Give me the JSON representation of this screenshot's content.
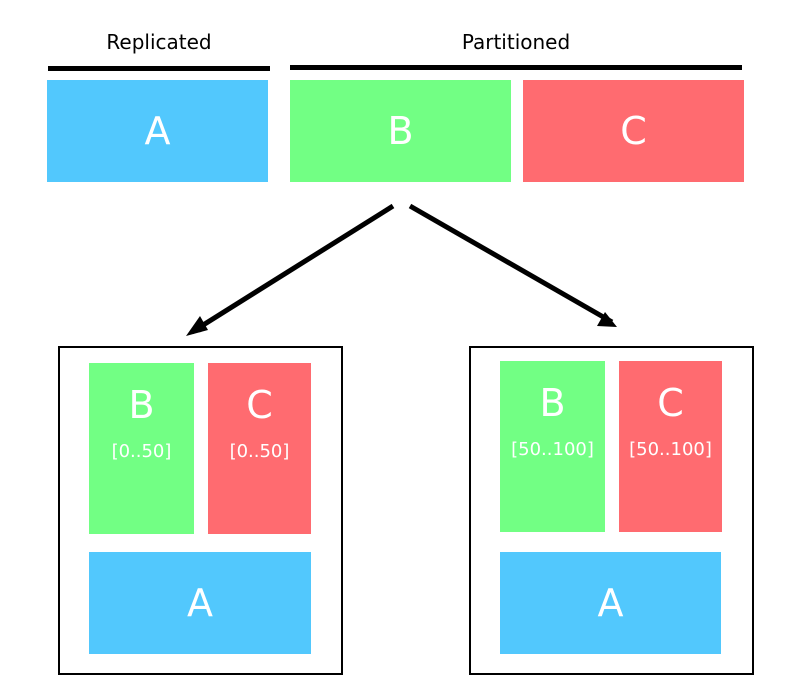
{
  "colors": {
    "replicated": "#52C8FD",
    "partitioned_b": "#72FF84",
    "partitioned_c": "#FF6B70",
    "text_on_block": "#FFFFFF",
    "line": "#000000"
  },
  "header": {
    "replicated_label": "Replicated",
    "partitioned_label": "Partitioned"
  },
  "tables": {
    "a": "A",
    "b": "B",
    "c": "C"
  },
  "nodes": [
    {
      "b_label": "B",
      "b_range": "[0..50]",
      "c_label": "C",
      "c_range": "[0..50]",
      "a_label": "A"
    },
    {
      "b_label": "B",
      "b_range": "[50..100]",
      "c_label": "C",
      "c_range": "[50..100]",
      "a_label": "A"
    }
  ]
}
